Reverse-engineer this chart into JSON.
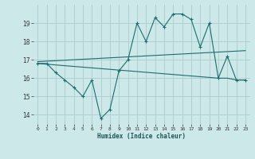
{
  "xlabel": "Humidex (Indice chaleur)",
  "bg_color": "#cce8e8",
  "grid_color": "#aacccc",
  "line_color": "#1a6e6e",
  "xlim": [
    -0.5,
    23.5
  ],
  "ylim": [
    13.5,
    20.0
  ],
  "yticks": [
    14,
    15,
    16,
    17,
    18,
    19
  ],
  "xticks": [
    0,
    1,
    2,
    3,
    4,
    5,
    6,
    7,
    8,
    9,
    10,
    11,
    12,
    13,
    14,
    15,
    16,
    17,
    18,
    19,
    20,
    21,
    22,
    23
  ],
  "series1_x": [
    0,
    1,
    2,
    3,
    4,
    5,
    6,
    7,
    8,
    9,
    10,
    11,
    12,
    13,
    14,
    15,
    16,
    17,
    18,
    19,
    20,
    21,
    22,
    23
  ],
  "series1_y": [
    16.8,
    16.8,
    16.3,
    15.9,
    15.5,
    15.0,
    15.9,
    13.8,
    14.3,
    16.4,
    17.0,
    19.0,
    18.0,
    19.3,
    18.8,
    19.5,
    19.5,
    19.2,
    17.7,
    19.0,
    16.0,
    17.2,
    15.9,
    15.9
  ],
  "series2_x": [
    0,
    23
  ],
  "series2_y": [
    16.9,
    17.5
  ],
  "series3_x": [
    0,
    20,
    21,
    22,
    23
  ],
  "series3_y": [
    16.8,
    16.0,
    16.0,
    15.9,
    15.9
  ]
}
